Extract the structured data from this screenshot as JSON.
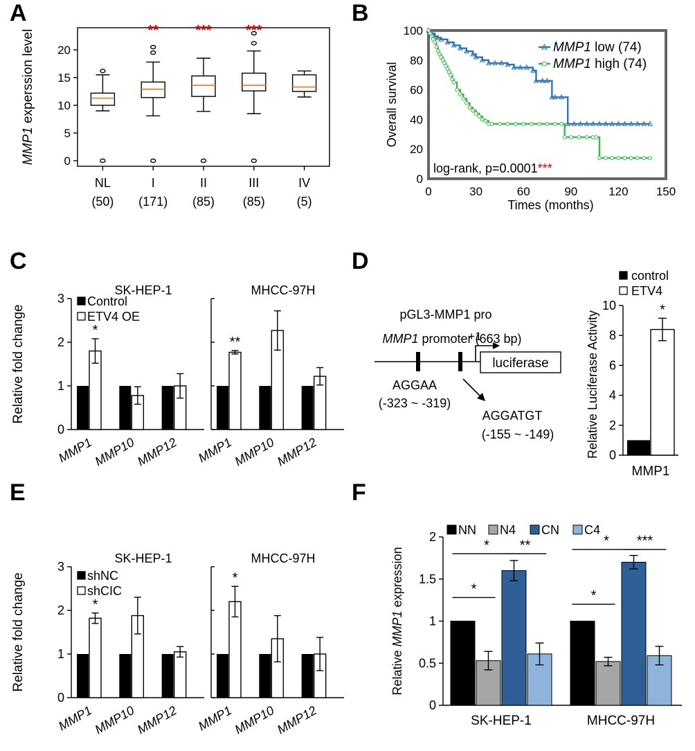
{
  "colors": {
    "black": "#000000",
    "red": "#cc0000",
    "orange": "#f08030",
    "blue": "#2e74b5",
    "green": "#3cb44b",
    "nn": "#000000",
    "n4": "#a6a6a6",
    "cn": "#2e5f96",
    "c4": "#8eb4dc"
  },
  "panel_labels": [
    "A",
    "B",
    "C",
    "D",
    "E",
    "F"
  ],
  "chart_data": [
    {
      "id": "A",
      "type": "box",
      "ylabel_italic": "MMP1",
      "ylabel_rest": " experssion level",
      "ylim": [
        -1,
        24
      ],
      "yticks": [
        "0",
        "5",
        "10",
        "15",
        "20"
      ],
      "categories": [
        "NL",
        "I",
        "II",
        "III",
        "IV"
      ],
      "counts": [
        "(50)",
        "(171)",
        "(85)",
        "(85)",
        "(5)"
      ],
      "significance": [
        "",
        "**",
        "***",
        "***",
        ""
      ],
      "boxes": [
        {
          "q1": 10.0,
          "median": 11.3,
          "q3": 12.2,
          "low": 9.0,
          "high": 15.5,
          "outliers": [
            16.2,
            0
          ]
        },
        {
          "q1": 11.4,
          "median": 12.9,
          "q3": 14.2,
          "low": 8.1,
          "high": 17.8,
          "outliers": [
            19.5,
            20.5,
            0
          ]
        },
        {
          "q1": 11.6,
          "median": 13.6,
          "q3": 15.3,
          "low": 8.9,
          "high": 18.5,
          "outliers": [
            0
          ]
        },
        {
          "q1": 12.6,
          "median": 13.6,
          "q3": 15.8,
          "low": 8.5,
          "high": 19.8,
          "outliers": [
            21.2,
            23.0,
            0
          ]
        },
        {
          "q1": 12.5,
          "median": 13.3,
          "q3": 15.5,
          "low": 11.5,
          "high": 16.2,
          "outliers": []
        }
      ]
    },
    {
      "id": "B",
      "type": "line",
      "xlabel": "Times (months)",
      "ylabel": "Overall survival",
      "xlim": [
        0,
        150
      ],
      "ylim": [
        0,
        100
      ],
      "xticks": [
        "0",
        "30",
        "60",
        "90",
        "120",
        "150"
      ],
      "yticks": [
        "0",
        "20",
        "40",
        "60",
        "80",
        "100"
      ],
      "series": [
        {
          "name_italic": "MMP1",
          "name_rest": " low (74)",
          "color_key": "blue",
          "x": [
            0,
            2,
            4,
            6,
            8,
            12,
            16,
            20,
            24,
            28,
            30,
            34,
            38,
            42,
            46,
            50,
            54,
            58,
            62,
            66,
            68,
            72,
            75,
            78,
            80,
            84,
            88,
            92,
            96,
            100,
            104,
            108,
            112,
            116,
            120,
            124,
            128,
            132,
            136,
            140
          ],
          "y": [
            100,
            98,
            96,
            95,
            94,
            92,
            90,
            88,
            86,
            84,
            82,
            80,
            78,
            78,
            78,
            77,
            75,
            75,
            75,
            73,
            66,
            66,
            66,
            55,
            55,
            55,
            37,
            37,
            37,
            37,
            37,
            37,
            37,
            37,
            37,
            37,
            37,
            37,
            37,
            37
          ]
        },
        {
          "name_italic": "MMP1",
          "name_rest": " high (74)",
          "color_key": "green",
          "x": [
            0,
            1,
            2,
            3,
            4,
            5,
            6,
            7,
            8,
            9,
            10,
            11,
            12,
            13,
            14,
            15,
            16,
            18,
            20,
            22,
            24,
            26,
            28,
            30,
            32,
            34,
            36,
            38,
            40,
            45,
            50,
            55,
            60,
            65,
            70,
            75,
            80,
            84,
            86,
            90,
            95,
            100,
            104,
            106,
            108,
            112,
            116,
            120,
            124,
            128,
            132,
            136,
            140
          ],
          "y": [
            100,
            98,
            96,
            94,
            92,
            89,
            86,
            84,
            82,
            80,
            78,
            76,
            74,
            72,
            70,
            67,
            65,
            60,
            57,
            54,
            51,
            48,
            46,
            44,
            42,
            40,
            39,
            37,
            37,
            37,
            37,
            37,
            37,
            37,
            37,
            37,
            37,
            37,
            28,
            28,
            28,
            28,
            28,
            28,
            14,
            14,
            14,
            14,
            14,
            14,
            14,
            14,
            14
          ]
        }
      ],
      "annotation": "log-rank, p=0.0001",
      "annotation_sig": "***"
    },
    {
      "id": "C",
      "type": "bar",
      "ylabel": "Relative fold change",
      "ylim": [
        0,
        3
      ],
      "yticks": [
        "0",
        "1",
        "2",
        "3"
      ],
      "legend": [
        "Control",
        "ETV4 OE"
      ],
      "subplots": [
        {
          "title": "SK-HEP-1",
          "categories": [
            "MMP1",
            "MMP10",
            "MMP12"
          ],
          "control": [
            1,
            1,
            1
          ],
          "treated": [
            1.8,
            0.78,
            1.0
          ],
          "treated_err": [
            0.28,
            0.2,
            0.28
          ],
          "control_err": [
            0,
            0.03,
            0
          ],
          "sig": [
            "*",
            "",
            ""
          ]
        },
        {
          "title": "MHCC-97H",
          "categories": [
            "MMP1",
            "MMP10",
            "MMP12"
          ],
          "control": [
            1,
            1,
            1
          ],
          "treated": [
            1.77,
            2.27,
            1.22
          ],
          "treated_err": [
            0.04,
            0.45,
            0.2
          ],
          "control_err": [
            0,
            0.03,
            0.03
          ],
          "sig": [
            "**",
            "",
            ""
          ]
        }
      ]
    },
    {
      "id": "D",
      "type": "bar",
      "ylabel": "Relative Luciferase Activity",
      "ylim": [
        0,
        10
      ],
      "yticks": [
        "0",
        "2",
        "4",
        "6",
        "8",
        "10"
      ],
      "legend": [
        "control",
        "ETV4"
      ],
      "categories": [
        "MMP1"
      ],
      "control": [
        1
      ],
      "treated": [
        8.4
      ],
      "treated_err": [
        0.75
      ],
      "sig": [
        "*"
      ],
      "diagram": {
        "construct": "pGL3-MMP1 pro",
        "promoter_italic": "MMP1",
        "promoter_rest": " promoter (663 bp)",
        "tss": "+1",
        "reporter": "luciferase",
        "site1": "AGGAA",
        "site1_pos": "(-323 ~ -319)",
        "site2": "AGGATGT",
        "site2_pos": "(-155 ~ -149)"
      }
    },
    {
      "id": "E",
      "type": "bar",
      "ylabel": "Relative fold change",
      "ylim": [
        0,
        3
      ],
      "yticks": [
        "0",
        "1",
        "2",
        "3"
      ],
      "legend": [
        "shNC",
        "shCIC"
      ],
      "subplots": [
        {
          "title": "SK-HEP-1",
          "categories": [
            "MMP1",
            "MMP10",
            "MMP12"
          ],
          "control": [
            1,
            1,
            1
          ],
          "treated": [
            1.82,
            1.88,
            1.05
          ],
          "treated_err": [
            0.12,
            0.42,
            0.12
          ],
          "control_err": [
            0,
            0.03,
            0
          ],
          "sig": [
            "*",
            "",
            ""
          ]
        },
        {
          "title": "MHCC-97H",
          "categories": [
            "MMP1",
            "MMP10",
            "MMP12"
          ],
          "control": [
            1,
            1,
            1
          ],
          "treated": [
            2.2,
            1.35,
            1.0
          ],
          "treated_err": [
            0.35,
            0.53,
            0.38
          ],
          "control_err": [
            0,
            0.03,
            0.03
          ],
          "sig": [
            "*",
            "",
            ""
          ]
        }
      ]
    },
    {
      "id": "F",
      "type": "bar",
      "ylabel_pre": "Relative ",
      "ylabel_italic": "MMP1",
      "ylabel_post": " expression",
      "ylim": [
        0,
        2
      ],
      "yticks": [
        "0",
        "0.5",
        "1",
        "1.5",
        "2"
      ],
      "legend": [
        "NN",
        "N4",
        "CN",
        "C4"
      ],
      "categories": [
        "SK-HEP-1",
        "MHCC-97H"
      ],
      "series": [
        {
          "name": "NN",
          "values": [
            1,
            1
          ],
          "err": [
            0,
            0
          ]
        },
        {
          "name": "N4",
          "values": [
            0.53,
            0.52
          ],
          "err": [
            0.11,
            0.05
          ]
        },
        {
          "name": "CN",
          "values": [
            1.6,
            1.7
          ],
          "err": [
            0.12,
            0.08
          ]
        },
        {
          "name": "C4",
          "values": [
            0.61,
            0.59
          ],
          "err": [
            0.13,
            0.11
          ]
        }
      ],
      "brackets": [
        {
          "group": 0,
          "from": 0,
          "to": 1,
          "y": 1.28,
          "label": "*"
        },
        {
          "group": 0,
          "from": 0,
          "to": 2,
          "y": 1.8,
          "label": "*"
        },
        {
          "group": 0,
          "from": 2,
          "to": 3,
          "y": 1.8,
          "label": "**"
        },
        {
          "group": 1,
          "from": 0,
          "to": 1,
          "y": 1.2,
          "label": "*"
        },
        {
          "group": 1,
          "from": 0,
          "to": 2,
          "y": 1.85,
          "label": "*"
        },
        {
          "group": 1,
          "from": 2,
          "to": 3,
          "y": 1.85,
          "label": "***"
        }
      ]
    }
  ]
}
